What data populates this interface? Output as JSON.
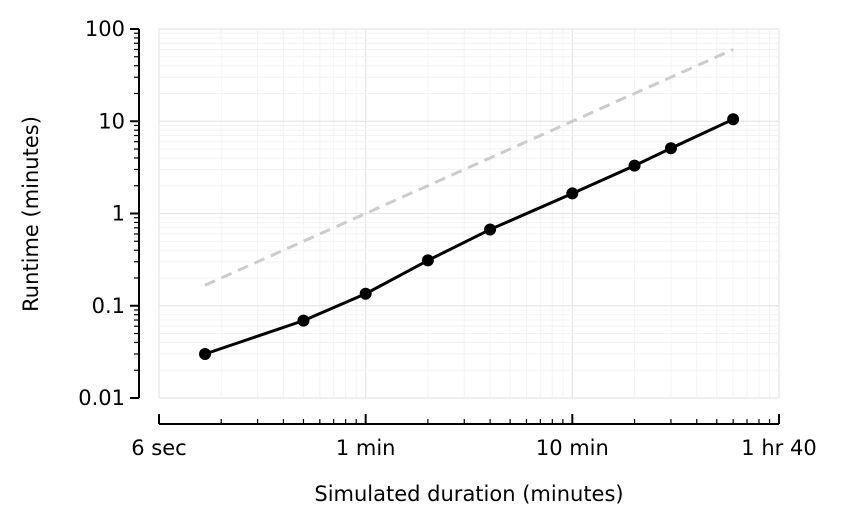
{
  "chart_data": {
    "type": "line",
    "xlabel": "Simulated duration (minutes)",
    "ylabel": "Runtime (minutes)",
    "xscale": "log",
    "yscale": "log",
    "xlim": [
      0.1,
      100
    ],
    "ylim": [
      0.01,
      100
    ],
    "grid": true,
    "x_ticks": [
      {
        "value": 0.1,
        "label": "6 sec"
      },
      {
        "value": 1,
        "label": "1 min"
      },
      {
        "value": 10,
        "label": "10 min"
      },
      {
        "value": 100,
        "label": "1 hr 40"
      }
    ],
    "y_ticks": [
      {
        "value": 0.01,
        "label": "0.01"
      },
      {
        "value": 0.1,
        "label": "0.1"
      },
      {
        "value": 1,
        "label": "1"
      },
      {
        "value": 10,
        "label": "10"
      },
      {
        "value": 100,
        "label": "100"
      }
    ],
    "series": [
      {
        "style": "solid",
        "marker": "circle",
        "color": "#000000",
        "points": [
          {
            "x": 0.167,
            "y": 0.03
          },
          {
            "x": 0.5,
            "y": 0.069
          },
          {
            "x": 1,
            "y": 0.135
          },
          {
            "x": 2,
            "y": 0.31
          },
          {
            "x": 4,
            "y": 0.67
          },
          {
            "x": 10,
            "y": 1.65
          },
          {
            "x": 20,
            "y": 3.3
          },
          {
            "x": 30,
            "y": 5.1
          },
          {
            "x": 60,
            "y": 10.5
          }
        ]
      },
      {
        "style": "dashed",
        "marker": "none",
        "color": "#cccccc",
        "points": [
          {
            "x": 0.167,
            "y": 0.167
          },
          {
            "x": 60,
            "y": 60
          }
        ]
      }
    ]
  }
}
